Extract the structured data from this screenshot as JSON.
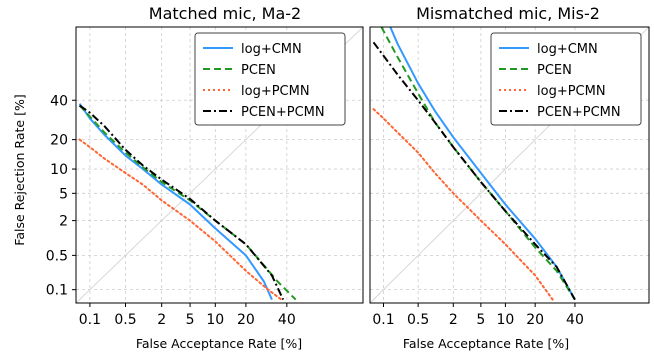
{
  "figure": {
    "xlabel": "False Acceptance Rate [%]",
    "ylabel": "False Rejection Rate [%]"
  },
  "chart_data": [
    {
      "type": "line",
      "title": "Matched mic, Ma-2",
      "xlabel": "False Acceptance Rate [%]",
      "ylabel": "False Rejection Rate [%]",
      "scale": "normal-deviate (DET)",
      "xlim": [
        0.05,
        80
      ],
      "ylim": [
        0.05,
        80
      ],
      "x_ticks": [
        0.1,
        0.5,
        2,
        5,
        10,
        20,
        40
      ],
      "x_tick_labels": [
        "0.1",
        "0.5",
        "2",
        "5",
        "10",
        "20",
        "40"
      ],
      "y_ticks": [
        0.1,
        0.5,
        2,
        5,
        10,
        20,
        40
      ],
      "y_tick_labels": [
        "0.1",
        "0.5",
        "2",
        "5",
        "10",
        "20",
        "40"
      ],
      "grid": true,
      "legend": "top-right",
      "series": [
        {
          "name": "log+CMN",
          "color": "#3399ff",
          "style": "solid",
          "points": [
            [
              0.06,
              38
            ],
            [
              0.1,
              30
            ],
            [
              0.2,
              22
            ],
            [
              0.5,
              14
            ],
            [
              1,
              10
            ],
            [
              2,
              6.5
            ],
            [
              5,
              3.5
            ],
            [
              10,
              1.5
            ],
            [
              20,
              0.5
            ],
            [
              28,
              0.15
            ],
            [
              32,
              0.06
            ]
          ]
        },
        {
          "name": "PCEN",
          "color": "#229922",
          "style": "dashed",
          "points": [
            [
              0.06,
              37
            ],
            [
              0.1,
              31
            ],
            [
              0.2,
              23
            ],
            [
              0.5,
              15
            ],
            [
              1,
              10.5
            ],
            [
              2,
              7
            ],
            [
              5,
              4
            ],
            [
              10,
              2
            ],
            [
              20,
              0.8
            ],
            [
              35,
              0.15
            ],
            [
              45,
              0.06
            ]
          ]
        },
        {
          "name": "log+PCMN",
          "color": "#ff6633",
          "style": "dotted",
          "points": [
            [
              0.06,
              20
            ],
            [
              0.1,
              17
            ],
            [
              0.2,
              13
            ],
            [
              0.5,
              9
            ],
            [
              1,
              6.5
            ],
            [
              2,
              4
            ],
            [
              5,
              2
            ],
            [
              10,
              0.9
            ],
            [
              20,
              0.25
            ],
            [
              30,
              0.1
            ],
            [
              37,
              0.06
            ]
          ]
        },
        {
          "name": "PCEN+PCMN",
          "color": "#000000",
          "style": "dashdot",
          "points": [
            [
              0.06,
              37
            ],
            [
              0.1,
              33
            ],
            [
              0.2,
              26
            ],
            [
              0.5,
              16
            ],
            [
              1,
              11
            ],
            [
              2,
              7.5
            ],
            [
              5,
              4.2
            ],
            [
              10,
              2
            ],
            [
              20,
              0.8
            ],
            [
              32,
              0.2
            ],
            [
              38,
              0.06
            ]
          ]
        }
      ]
    },
    {
      "type": "line",
      "title": "Mismatched mic, Mis-2",
      "xlabel": "False Acceptance Rate [%]",
      "ylabel": "",
      "scale": "normal-deviate (DET)",
      "xlim": [
        0.05,
        80
      ],
      "ylim": [
        0.05,
        80
      ],
      "x_ticks": [
        0.1,
        0.5,
        2,
        5,
        10,
        20,
        40
      ],
      "x_tick_labels": [
        "0.1",
        "0.5",
        "2",
        "5",
        "10",
        "20",
        "40"
      ],
      "grid": true,
      "legend": "top-right",
      "series": [
        {
          "name": "log+CMN",
          "color": "#3399ff",
          "style": "solid",
          "points": [
            [
              0.14,
              80
            ],
            [
              0.2,
              72
            ],
            [
              0.5,
              50
            ],
            [
              1,
              34
            ],
            [
              2,
              21
            ],
            [
              5,
              9
            ],
            [
              10,
              3.5
            ],
            [
              20,
              1
            ],
            [
              30,
              0.3
            ],
            [
              40,
              0.06
            ]
          ]
        },
        {
          "name": "PCEN",
          "color": "#229922",
          "style": "dashed",
          "points": [
            [
              0.09,
              80
            ],
            [
              0.2,
              65
            ],
            [
              0.5,
              44
            ],
            [
              1,
              28
            ],
            [
              2,
              17
            ],
            [
              5,
              7
            ],
            [
              10,
              2.8
            ],
            [
              20,
              0.7
            ],
            [
              30,
              0.25
            ],
            [
              40,
              0.06
            ]
          ]
        },
        {
          "name": "log+PCMN",
          "color": "#ff6633",
          "style": "dotted",
          "points": [
            [
              0.06,
              35
            ],
            [
              0.1,
              30
            ],
            [
              0.2,
              23
            ],
            [
              0.5,
              15
            ],
            [
              1,
              9
            ],
            [
              2,
              5
            ],
            [
              5,
              2
            ],
            [
              10,
              0.8
            ],
            [
              20,
              0.2
            ],
            [
              28,
              0.06
            ]
          ]
        },
        {
          "name": "PCEN+PCMN",
          "color": "#000000",
          "style": "dashdot",
          "points": [
            [
              0.06,
              73
            ],
            [
              0.1,
              66
            ],
            [
              0.2,
              55
            ],
            [
              0.5,
              40
            ],
            [
              1,
              28
            ],
            [
              2,
              17
            ],
            [
              5,
              7
            ],
            [
              10,
              2.8
            ],
            [
              20,
              0.8
            ],
            [
              30,
              0.3
            ],
            [
              40,
              0.06
            ]
          ]
        }
      ]
    }
  ]
}
